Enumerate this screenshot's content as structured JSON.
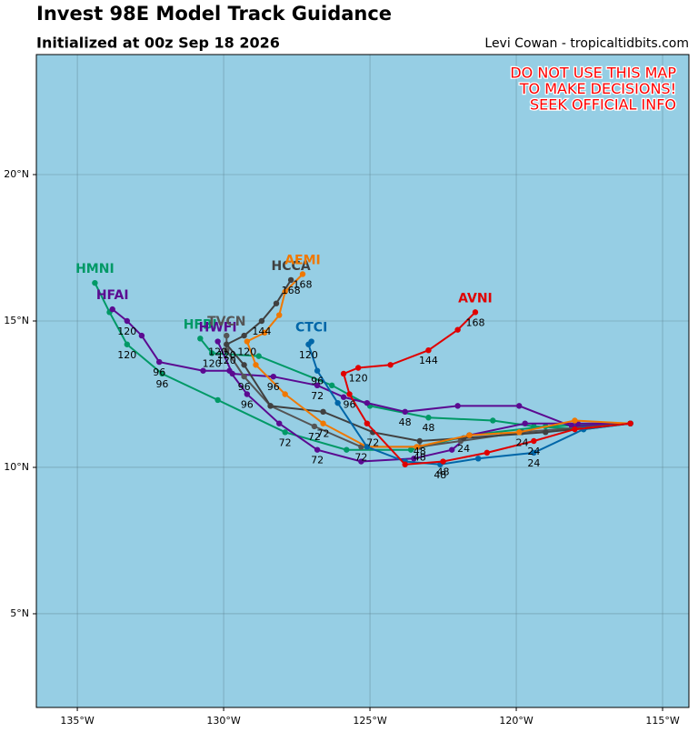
{
  "chart_data": {
    "type": "track-map",
    "title": "Invest 98E Model Track Guidance",
    "subtitle": "Initialized at 00z Sep 18 2026",
    "credit": "Levi Cowan - tropicaltidbits.com",
    "warning": [
      "DO NOT USE THIS MAP",
      "TO MAKE DECISIONS!",
      "SEEK OFFICIAL INFO"
    ],
    "background": "#96cee4",
    "grid": true,
    "xlim": [
      -136.4,
      -114.1
    ],
    "ylim": [
      1.8,
      24.1
    ],
    "xticks": [
      {
        "value": -135,
        "label": "135°W"
      },
      {
        "value": -130,
        "label": "130°W"
      },
      {
        "value": -125,
        "label": "125°W"
      },
      {
        "value": -120,
        "label": "120°W"
      },
      {
        "value": -115,
        "label": "115°W"
      }
    ],
    "yticks": [
      {
        "value": 5,
        "label": "5°N"
      },
      {
        "value": 10,
        "label": "10°N"
      },
      {
        "value": 15,
        "label": "15°N"
      },
      {
        "value": 20,
        "label": "20°N"
      }
    ],
    "series": [
      {
        "name": "HMNI",
        "color": "#009966",
        "x": [
          -116.1,
          -119.0,
          -121.6,
          -123.6,
          -125.8,
          -127.9,
          -130.2,
          -132.1,
          -133.3,
          -133.9,
          -134.4
        ],
        "y": [
          11.5,
          11.4,
          11.1,
          10.6,
          10.6,
          11.2,
          12.3,
          13.2,
          14.2,
          15.3,
          16.3
        ],
        "point_labels": [
          null,
          null,
          null,
          null,
          null,
          72,
          null,
          96,
          120,
          null,
          null
        ]
      },
      {
        "name": "HFBI",
        "color": "#009966",
        "x": [
          -116.1,
          -117.7,
          -119.4,
          -120.8,
          -123.0,
          -125.0,
          -126.3,
          -128.8,
          -130.4,
          -130.8
        ],
        "y": [
          11.5,
          11.3,
          11.4,
          11.6,
          11.7,
          12.1,
          12.8,
          13.8,
          13.9,
          14.4
        ],
        "point_labels": [
          null,
          null,
          null,
          null,
          48,
          null,
          null,
          null,
          120,
          null
        ]
      },
      {
        "name": "HFAI",
        "color": "#5b0a91",
        "x": [
          -116.1,
          -117.9,
          -119.7,
          -121.6,
          -122.2,
          -123.5,
          -125.3,
          -126.8,
          -128.1,
          -129.2,
          -129.8,
          -130.7,
          -132.2,
          -132.8,
          -133.3,
          -133.8
        ],
        "y": [
          11.5,
          11.5,
          11.5,
          11.1,
          10.6,
          10.3,
          10.2,
          10.6,
          11.5,
          12.5,
          13.3,
          13.3,
          13.6,
          14.5,
          15.0,
          15.4
        ],
        "point_labels": [
          null,
          null,
          null,
          null,
          null,
          null,
          null,
          72,
          null,
          96,
          null,
          null,
          96,
          null,
          120,
          null
        ]
      },
      {
        "name": "HWFI",
        "color": "#5b0a91",
        "x": [
          -116.1,
          -118.1,
          -119.9,
          -122.0,
          -123.8,
          -125.1,
          -125.9,
          -126.8,
          -128.3,
          -129.7,
          -130.2
        ],
        "y": [
          11.5,
          11.4,
          12.1,
          12.1,
          11.9,
          12.2,
          12.4,
          12.8,
          13.1,
          13.2,
          14.3
        ],
        "point_labels": [
          null,
          null,
          null,
          null,
          48,
          null,
          null,
          72,
          96,
          null,
          120
        ]
      },
      {
        "name": "TVCN",
        "color": "#555555",
        "x": [
          -116.1,
          -119.8,
          -121.9,
          -123.3,
          -125.3,
          -126.9,
          -128.4,
          -129.3,
          -129.9,
          -129.9
        ],
        "y": [
          11.5,
          11.2,
          10.9,
          10.7,
          10.7,
          11.4,
          12.1,
          13.1,
          14.0,
          14.5
        ],
        "point_labels": [
          null,
          24,
          null,
          48,
          72,
          72,
          null,
          96,
          120,
          null
        ]
      },
      {
        "name": "HCCA",
        "color": "#404040",
        "x": [
          -116.1,
          -119.0,
          -121.8,
          -123.3,
          -124.9,
          -126.6,
          -128.4,
          -129.3,
          -129.9,
          -129.3,
          -128.7,
          -128.2,
          -127.7
        ],
        "y": [
          11.5,
          11.2,
          11.0,
          10.9,
          11.2,
          11.9,
          12.1,
          13.5,
          14.2,
          14.5,
          15.0,
          15.6,
          16.4
        ],
        "point_labels": [
          null,
          null,
          24,
          48,
          72,
          null,
          null,
          null,
          120,
          null,
          144,
          null,
          168
        ]
      },
      {
        "name": "AEMI",
        "color": "#f07800",
        "x": [
          -116.1,
          -118.0,
          -119.9,
          -121.6,
          -123.4,
          -125.1,
          -126.6,
          -127.9,
          -128.9,
          -129.2,
          -128.6,
          -128.1,
          -127.9,
          -127.3
        ],
        "y": [
          11.5,
          11.6,
          11.2,
          11.1,
          10.7,
          10.7,
          11.5,
          12.5,
          13.5,
          14.3,
          14.6,
          15.2,
          16.0,
          16.6
        ],
        "point_labels": [
          null,
          null,
          null,
          null,
          null,
          null,
          72,
          null,
          null,
          120,
          null,
          null,
          null,
          168
        ]
      },
      {
        "name": "CTCI",
        "color": "#0066a8",
        "x": [
          -116.1,
          -117.7,
          -119.4,
          -121.3,
          -122.6,
          -123.8,
          -125.1,
          -126.1,
          -126.8,
          -127.1,
          -127.0
        ],
        "y": [
          11.5,
          11.3,
          10.5,
          10.3,
          10.1,
          10.2,
          10.7,
          12.2,
          13.3,
          14.2,
          14.3
        ],
        "point_labels": [
          null,
          null,
          24,
          null,
          48,
          null,
          null,
          null,
          96,
          120,
          null
        ]
      },
      {
        "name": "AVNI",
        "color": "#e00000",
        "x": [
          -116.1,
          -118.0,
          -119.4,
          -121.0,
          -122.5,
          -123.8,
          -125.1,
          -125.7,
          -125.9,
          -125.4,
          -124.3,
          -123.0,
          -122.0,
          -121.4
        ],
        "y": [
          11.5,
          11.3,
          10.9,
          10.5,
          10.2,
          10.1,
          11.5,
          12.5,
          13.2,
          13.4,
          13.5,
          14.0,
          14.7,
          15.3
        ],
        "point_labels": [
          null,
          null,
          24,
          null,
          48,
          null,
          null,
          96,
          null,
          120,
          null,
          144,
          null,
          168
        ]
      }
    ]
  }
}
